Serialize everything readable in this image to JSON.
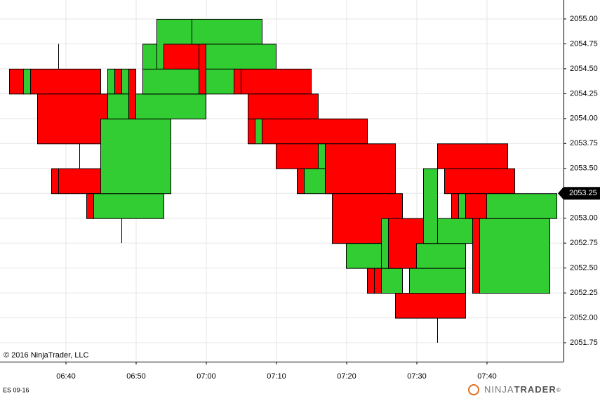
{
  "chart_data": {
    "type": "box",
    "instrument": "ES 09-16",
    "copyright": "© 2016 NinjaTrader, LLC",
    "logo": {
      "first": "NINJA",
      "second": "TRADER",
      "mark": "®"
    },
    "up_color": "#32cd32",
    "down_color": "#ff0000",
    "grid": true,
    "xlim": [
      390.6,
      470.9
    ],
    "ylim": [
      2051.56,
      2055.19
    ],
    "xticks": [
      {
        "value": 400,
        "label": "06:40"
      },
      {
        "value": 410,
        "label": "06:50"
      },
      {
        "value": 420,
        "label": "07:00"
      },
      {
        "value": 430,
        "label": "07:10"
      },
      {
        "value": 440,
        "label": "07:20"
      },
      {
        "value": 450,
        "label": "07:30"
      },
      {
        "value": 460,
        "label": "07:40"
      }
    ],
    "yticks": [
      {
        "value": 2051.75,
        "label": "2051.75"
      },
      {
        "value": 2052,
        "label": "2052.00"
      },
      {
        "value": 2052.25,
        "label": "2052.25"
      },
      {
        "value": 2052.5,
        "label": "2052.50"
      },
      {
        "value": 2052.75,
        "label": "2052.75"
      },
      {
        "value": 2053,
        "label": "2053.00"
      },
      {
        "value": 2053.25,
        "label": "2053.25"
      },
      {
        "value": 2053.5,
        "label": "2053.50"
      },
      {
        "value": 2053.75,
        "label": "2053.75"
      },
      {
        "value": 2054,
        "label": "2054.00"
      },
      {
        "value": 2054.25,
        "label": "2054.25"
      },
      {
        "value": 2054.5,
        "label": "2054.50"
      },
      {
        "value": 2054.75,
        "label": "2054.75"
      },
      {
        "value": 2055,
        "label": "2055.00"
      }
    ],
    "last_price": {
      "value": 2053.25,
      "label": "2053.25"
    },
    "boxes": {
      "start": [
        391.9,
        393.9,
        394.9,
        395.9,
        397.9,
        398.9,
        402.9,
        403.9,
        404.9,
        405.9,
        406.9,
        407.9,
        408.9,
        405.9,
        409.9,
        410.9,
        412.9,
        413.9,
        417.9,
        410.9,
        418.9,
        419.9,
        419.9,
        423.9,
        424.9,
        425.9,
        425.9,
        426.9,
        427.9,
        429.9,
        435.9,
        432.9,
        433.9,
        436.9,
        437.9,
        439.9,
        442.9,
        443.9,
        444.9,
        444.9,
        445.9,
        446.9,
        449.9,
        448.9,
        450.9,
        452.9,
        453.9,
        454.9,
        455.9,
        456.9,
        452.9,
        457.9,
        458.9,
        459.9
      ],
      "end": [
        393.9,
        394.9,
        404.9,
        405.9,
        398.9,
        404.9,
        403.9,
        413.9,
        414.9,
        406.9,
        407.9,
        408.9,
        409.9,
        408.9,
        419.9,
        412.9,
        417.9,
        418.9,
        427.9,
        419.9,
        419.9,
        429.9,
        423.9,
        424.9,
        434.9,
        435.9,
        426.9,
        427.9,
        442.9,
        436.9,
        436.9,
        433.9,
        437.9,
        446.9,
        447.9,
        444.9,
        443.9,
        444.9,
        447.9,
        445.9,
        450.9,
        456.9,
        456.9,
        456.9,
        452.9,
        462.9,
        463.9,
        455.9,
        456.9,
        459.9,
        457.9,
        458.9,
        468.9,
        469.9
      ],
      "open": [
        2054.5,
        2054.25,
        2054.5,
        2054.25,
        2053.5,
        2053.5,
        2053.25,
        2053,
        2053.25,
        2054.25,
        2054.5,
        2054.25,
        2054.5,
        2054,
        2054,
        2054.25,
        2054.5,
        2054.75,
        2054.75,
        2054.25,
        2054.75,
        2054.5,
        2054.25,
        2054.5,
        2054.5,
        2054.25,
        2054,
        2053.75,
        2054,
        2053.75,
        2053.5,
        2053.5,
        2053.25,
        2053.75,
        2053.25,
        2052.5,
        2052.5,
        2052.5,
        2052.25,
        2052.5,
        2053,
        2052.25,
        2052.5,
        2052.25,
        2052.75,
        2053.75,
        2053.5,
        2053.25,
        2053,
        2053.25,
        2052.75,
        2053,
        2052.25,
        2053
      ],
      "close": [
        2054.25,
        2054.5,
        2054.25,
        2053.75,
        2053.25,
        2053.25,
        2053,
        2053.25,
        2054,
        2054.5,
        2054.25,
        2054.5,
        2054,
        2054.25,
        2054.25,
        2054.75,
        2055,
        2054.5,
        2055,
        2054.5,
        2054.25,
        2054.75,
        2054.5,
        2054.25,
        2054.25,
        2054,
        2053.75,
        2054,
        2053.75,
        2053.5,
        2053.75,
        2053.25,
        2053.5,
        2053.25,
        2052.75,
        2052.75,
        2052.25,
        2052.25,
        2052.5,
        2053,
        2052.5,
        2052,
        2052.75,
        2052.5,
        2053.5,
        2053.5,
        2053.25,
        2053,
        2053.25,
        2053,
        2053,
        2052.25,
        2053,
        2053.25
      ]
    },
    "wicks": {
      "x": [
        398.9,
        401.9,
        407.9,
        437.9,
        450.9,
        452.9
      ],
      "high": [
        2054.75,
        2053.75,
        2053,
        2053.25,
        2053.5,
        2052
      ],
      "low": [
        2054.5,
        2053.5,
        2052.75,
        2053,
        2052.75,
        2051.75
      ]
    }
  }
}
